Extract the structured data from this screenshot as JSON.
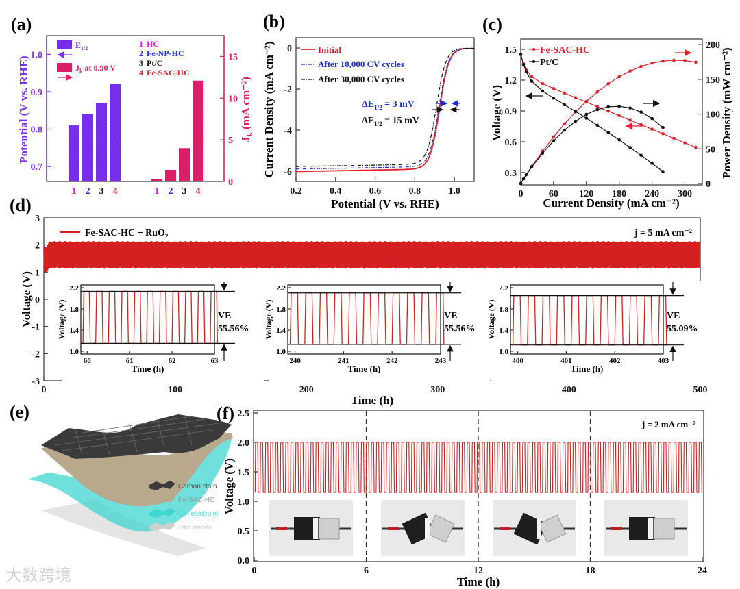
{
  "panels": {
    "a": "(a)",
    "b": "(b)",
    "c": "(c)",
    "d": "(d)",
    "e": "(e)",
    "f": "(f)"
  },
  "colors": {
    "purple": "#7b2ff0",
    "pink": "#e0206a",
    "magenta": "#e020e0",
    "blue": "#1a2fd6",
    "red": "#e0202a",
    "black": "#111111",
    "trace": "#d42020"
  },
  "chart_data": [
    {
      "id": "a",
      "type": "bar",
      "categories": [
        "1",
        "2",
        "3",
        "4"
      ],
      "legend_samples": {
        "E_main": "E",
        "E_sub": "1/2",
        "J_main": "J",
        "J_sub": "k",
        "J_rest": " at 0.90 V"
      },
      "category_legend": [
        {
          "num": "1",
          "name": "HC"
        },
        {
          "num": "2",
          "name": "Fe-NP-HC"
        },
        {
          "num": "3",
          "name": "Pt/C"
        },
        {
          "num": "4",
          "name": "Fe-SAC-HC"
        }
      ],
      "series": [
        {
          "name": "E1/2",
          "axis": "left",
          "values": [
            0.81,
            0.84,
            0.87,
            0.92
          ]
        },
        {
          "name": "Jk at 0.90 V",
          "axis": "right",
          "values": [
            0.3,
            1.4,
            4.0,
            12.1
          ]
        }
      ],
      "ylabel_left": "Potential (V vs. RHE)",
      "ylim_left": [
        0.66,
        1.05
      ],
      "yticks_left": [
        "0.7",
        "0.8",
        "0.9",
        "1.0"
      ],
      "ylabel_right_main": "J",
      "ylabel_right_sub": "k",
      "ylabel_right_rest": " (mA cm⁻²)",
      "ylim_right": [
        0,
        17.5
      ],
      "yticks_right": [
        "0",
        "5",
        "10",
        "15"
      ]
    },
    {
      "id": "b",
      "type": "line",
      "xlabel": "Potential (V vs. RHE)",
      "ylabel": "Current Density (mA cm⁻²)",
      "xlim": [
        0.2,
        1.1
      ],
      "ylim": [
        -6.5,
        0.5
      ],
      "xticks": [
        "0.2",
        "0.4",
        "0.6",
        "0.8",
        "1.0"
      ],
      "yticks": [
        "0",
        "-2",
        "-4",
        "-6"
      ],
      "series": [
        {
          "name": "Initial",
          "half_wave": 0.925,
          "limit": -5.9
        },
        {
          "name": "After 10,000 CV cycles",
          "half_wave": 0.922,
          "limit": -5.78
        },
        {
          "name": "After 30,000 CV cycles",
          "half_wave": 0.91,
          "limit": -5.66
        }
      ],
      "annotations": [
        {
          "main": "ΔE",
          "sub": "1/2",
          "rest": " = 3 mV"
        },
        {
          "main": "ΔE",
          "sub": "1/2",
          "rest": " = 15 mV"
        }
      ]
    },
    {
      "id": "c",
      "type": "line",
      "xlabel": "Current Density (mA cm⁻²)",
      "ylabel_left": "Voltage (V)",
      "ylabel_right": "Power Density (mW cm⁻²)",
      "xlim": [
        0,
        332
      ],
      "ylim_left": [
        0.18,
        1.6
      ],
      "ylim_right": [
        0,
        210
      ],
      "xticks": [
        "0",
        "60",
        "120",
        "180",
        "240",
        "300"
      ],
      "yticks_left": [
        "0.3",
        "0.6",
        "0.9",
        "1.2",
        "1.5"
      ],
      "yticks_right": [
        "0",
        "50",
        "100",
        "150",
        "200"
      ],
      "series": [
        {
          "name": "Fe-SAC-HC",
          "j": [
            0,
            5,
            10,
            20,
            40,
            60,
            80,
            100,
            120,
            140,
            160,
            180,
            200,
            220,
            240,
            260,
            280,
            300,
            320
          ],
          "V": [
            1.45,
            1.36,
            1.3,
            1.233,
            1.166,
            1.118,
            1.074,
            1.03,
            0.986,
            0.942,
            0.898,
            0.854,
            0.81,
            0.766,
            0.722,
            0.678,
            0.634,
            0.59,
            0.546
          ]
        },
        {
          "name": "Pt/C",
          "j": [
            0,
            5,
            10,
            20,
            40,
            60,
            80,
            100,
            120,
            140,
            160,
            180,
            200,
            220,
            240,
            260
          ],
          "V": [
            1.45,
            1.351,
            1.281,
            1.19,
            1.093,
            1.025,
            0.961,
            0.896,
            0.83,
            0.761,
            0.691,
            0.618,
            0.544,
            0.468,
            0.39,
            0.31
          ]
        }
      ],
      "peak_power": {
        "Fe-SAC-HC": 184,
        "Pt/C": 115
      }
    },
    {
      "id": "d",
      "type": "line",
      "legend": "Fe-SAC-HC + RuO",
      "legend_sub": "2",
      "annotation": "j = 5 mA cm⁻²",
      "xlabel": "Time (h)",
      "ylabel": "Voltage (V)",
      "xlim": [
        0,
        500
      ],
      "ylim": [
        -3,
        3
      ],
      "xticks": [
        "0",
        "100",
        "200",
        "300",
        "400",
        "500"
      ],
      "yticks": [
        "-3",
        "-2",
        "-1",
        "0",
        "1",
        "2",
        "3"
      ],
      "charge_V": 2.12,
      "discharge_V": 1.15,
      "insets": [
        {
          "xlim": [
            60,
            63
          ],
          "xticks": [
            "60",
            "61",
            "62",
            "63"
          ],
          "ve_label": "VE",
          "ve": "55.56%",
          "high": 2.13,
          "low": 1.15
        },
        {
          "xlim": [
            240,
            243
          ],
          "xticks": [
            "240",
            "241",
            "242",
            "243"
          ],
          "ve_label": "VE",
          "ve": "55.56%",
          "high": 2.1,
          "low": 1.13
        },
        {
          "xlim": [
            400,
            403
          ],
          "xticks": [
            "400",
            "401",
            "402",
            "403"
          ],
          "ve_label": "VE",
          "ve": "55.09%",
          "high": 2.05,
          "low": 1.12
        }
      ],
      "inset_xlabel": "Time (h)",
      "inset_ylabel": "Voltage (V)",
      "inset_yticks": [
        "1.0",
        "1.4",
        "1.8",
        "2.2"
      ],
      "inset_ylim": [
        1.0,
        2.2
      ]
    },
    {
      "id": "f",
      "type": "line",
      "annotation": "j = 2 mA cm⁻²",
      "xlabel": "Time (h)",
      "ylabel": "Voltage (V)",
      "xlim": [
        0,
        24
      ],
      "ylim": [
        0,
        2.5
      ],
      "xticks": [
        "0",
        "6",
        "12",
        "18",
        "24"
      ],
      "yticks": [
        "0.0",
        "0.5",
        "1.0",
        "1.5",
        "2.0",
        "2.5"
      ],
      "charge_V": 2.0,
      "discharge_V": 1.15,
      "cycle_period_h": 0.27,
      "bend_markers_h": [
        6,
        12,
        18
      ]
    }
  ],
  "illustration_e": {
    "layers": [
      "Carbon cloth",
      "Fe-SAC-HC",
      "Gel electrolyt",
      "Zinc anode"
    ]
  },
  "watermark": "大数跨境"
}
